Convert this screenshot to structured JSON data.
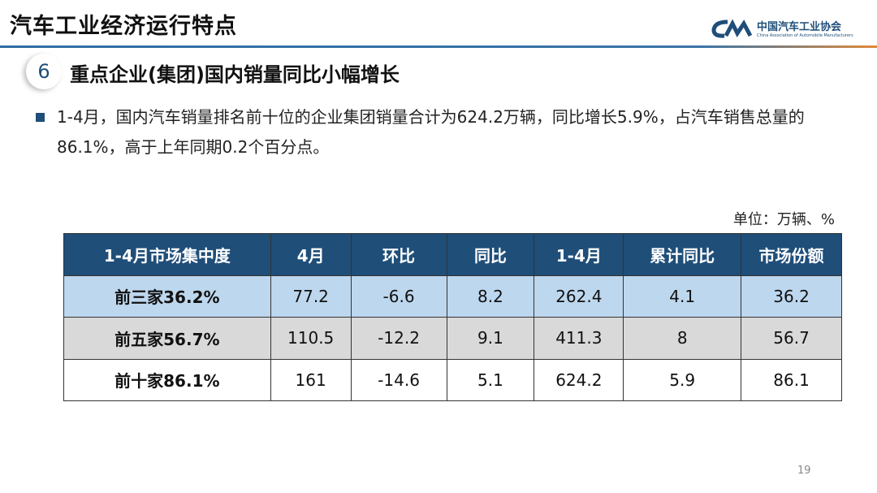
{
  "header": {
    "title": "汽车工业经济运行特点",
    "logo_cn": "中国汽车工业协会",
    "logo_en": "China Association of Automobile Manufacturers",
    "accent": "#1f4e79"
  },
  "section": {
    "number": "6",
    "title": "重点企业(集团)国内销量同比小幅增长"
  },
  "paragraph": "1-4月，国内汽车销量排名前十位的企业集团销量合计为624.2万辆，同比增长5.9%，占汽车销售总量的86.1%，高于上年同期0.2个百分点。",
  "unit": "单位：万辆、%",
  "table": {
    "headers": [
      "1-4月市场集中度",
      "4月",
      "环比",
      "同比",
      "1-4月",
      "累计同比",
      "市场份额"
    ],
    "rows": [
      [
        "前三家36.2%",
        "77.2",
        "-6.6",
        "8.2",
        "262.4",
        "4.1",
        "36.2"
      ],
      [
        "前五家56.7%",
        "110.5",
        "-12.2",
        "9.1",
        "411.3",
        "8",
        "56.7"
      ],
      [
        "前十家86.1%",
        "161",
        "-14.6",
        "5.1",
        "624.2",
        "5.9",
        "86.1"
      ]
    ]
  },
  "page_number": "19"
}
